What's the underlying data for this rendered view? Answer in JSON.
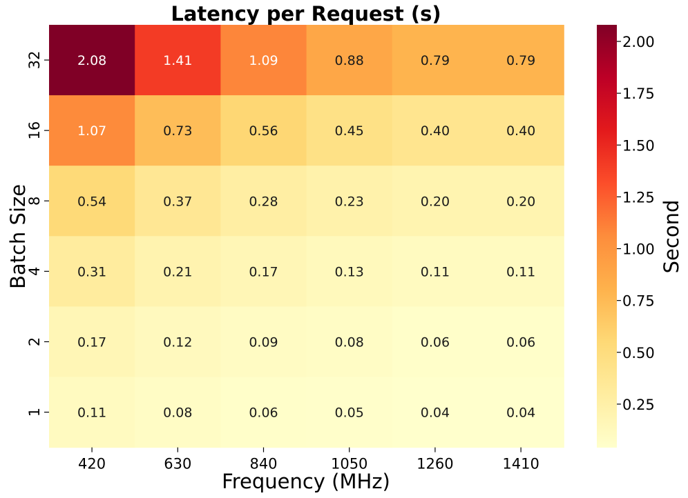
{
  "chart_data": {
    "type": "heatmap",
    "title": "Latency per Request (s)",
    "xlabel": "Frequency (MHz)",
    "ylabel": "Batch Size",
    "x_categories": [
      "420",
      "630",
      "840",
      "1050",
      "1260",
      "1410"
    ],
    "y_categories": [
      "32",
      "16",
      "8",
      "4",
      "2",
      "1"
    ],
    "values": [
      [
        2.08,
        1.41,
        1.09,
        0.88,
        0.79,
        0.79
      ],
      [
        1.07,
        0.73,
        0.56,
        0.45,
        0.4,
        0.4
      ],
      [
        0.54,
        0.37,
        0.28,
        0.23,
        0.2,
        0.2
      ],
      [
        0.31,
        0.21,
        0.17,
        0.13,
        0.11,
        0.11
      ],
      [
        0.17,
        0.12,
        0.09,
        0.08,
        0.06,
        0.06
      ],
      [
        0.11,
        0.08,
        0.06,
        0.05,
        0.04,
        0.04
      ]
    ],
    "cell_labels": [
      [
        "2.08",
        "1.41",
        "1.09",
        "0.88",
        "0.79",
        "0.79"
      ],
      [
        "1.07",
        "0.73",
        "0.56",
        "0.45",
        "0.40",
        "0.40"
      ],
      [
        "0.54",
        "0.37",
        "0.28",
        "0.23",
        "0.20",
        "0.20"
      ],
      [
        "0.31",
        "0.21",
        "0.17",
        "0.13",
        "0.11",
        "0.11"
      ],
      [
        "0.17",
        "0.12",
        "0.09",
        "0.08",
        "0.06",
        "0.06"
      ],
      [
        "0.11",
        "0.08",
        "0.06",
        "0.05",
        "0.04",
        "0.04"
      ]
    ],
    "colorbar": {
      "label": "Second",
      "colormap": "YlOrRd",
      "range": [
        0.04,
        2.08
      ],
      "ticks": [
        0.25,
        0.5,
        0.75,
        1.0,
        1.25,
        1.5,
        1.75,
        2.0
      ],
      "tick_labels": [
        "0.25",
        "0.50",
        "0.75",
        "1.00",
        "1.25",
        "1.50",
        "1.75",
        "2.00"
      ]
    },
    "grid": false,
    "colors": {
      "text_light": "#ffffff",
      "text_dark": "#1a1a1a",
      "colormap_stops": [
        "#ffffcc",
        "#ffeda0",
        "#fed976",
        "#feb24c",
        "#fd8d3c",
        "#fc4e2a",
        "#e31a1c",
        "#bd0026",
        "#800026"
      ]
    }
  }
}
